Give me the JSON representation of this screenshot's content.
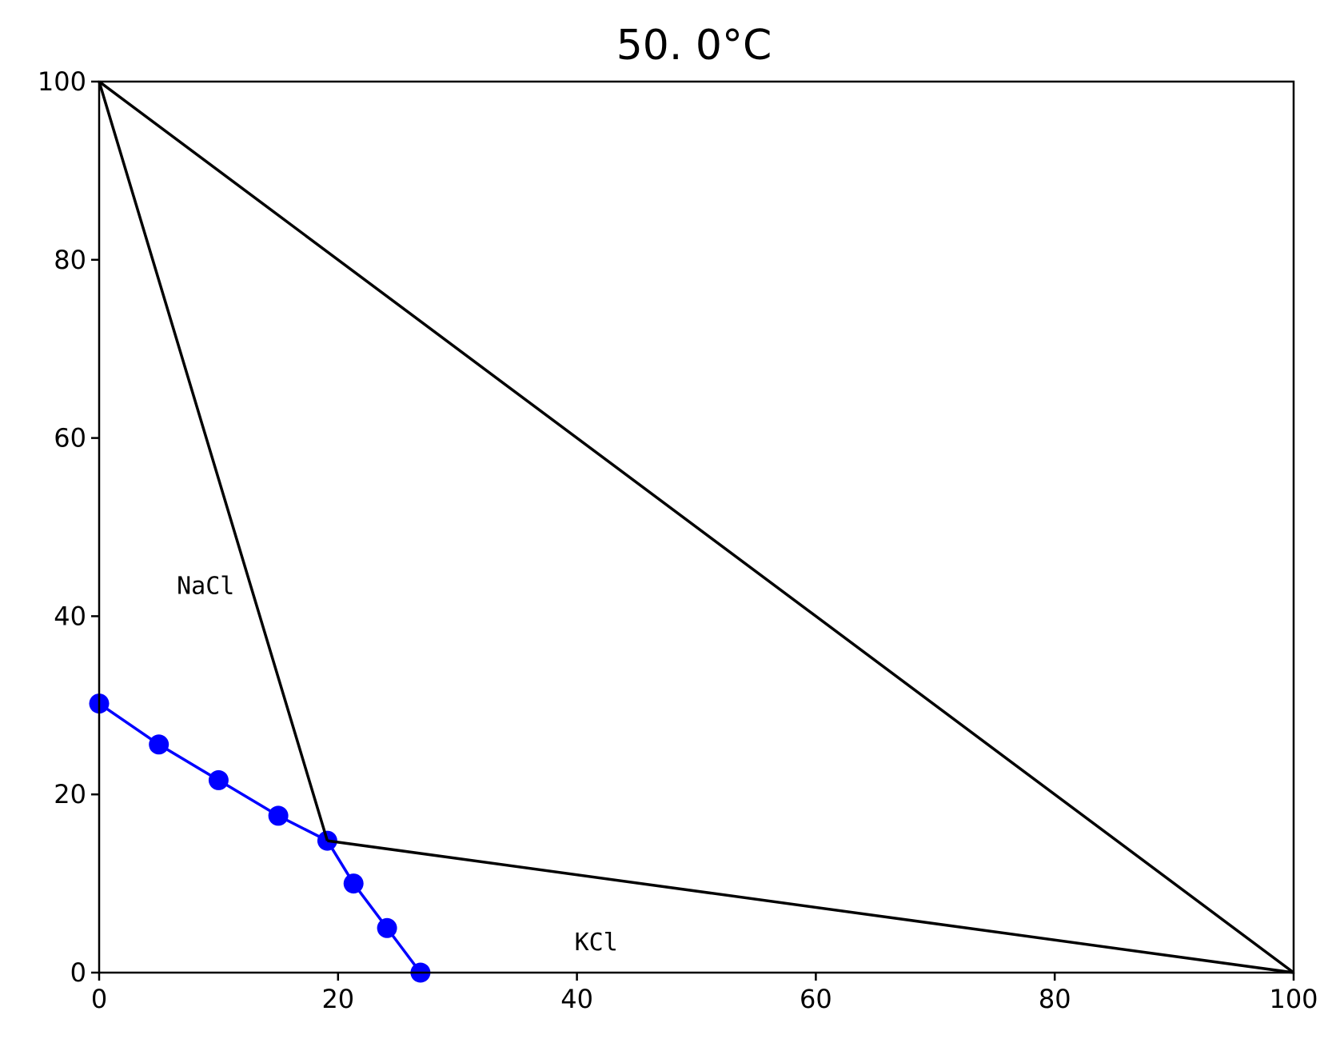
{
  "chart_data": {
    "type": "line",
    "title": "50. 0°C",
    "xlabel": "",
    "ylabel": "",
    "xlim": [
      0,
      100
    ],
    "ylim": [
      0,
      100
    ],
    "grid": false,
    "xticks": [
      0,
      20,
      40,
      60,
      80,
      100
    ],
    "yticks": [
      0,
      20,
      40,
      60,
      80,
      100
    ],
    "series": [
      {
        "color": "#0000ff",
        "marker": "circle",
        "x": [
          0,
          5,
          10,
          15,
          19.1,
          21.3,
          24.1,
          26.9
        ],
        "y": [
          30.2,
          25.6,
          21.6,
          17.6,
          14.8,
          10,
          5,
          0
        ]
      },
      {
        "color": "#000000",
        "marker": "none",
        "x": [
          0,
          19.1
        ],
        "y": [
          100,
          14.8
        ]
      },
      {
        "color": "#000000",
        "marker": "none",
        "x": [
          19.1,
          100
        ],
        "y": [
          14.8,
          0
        ]
      },
      {
        "color": "#000000",
        "marker": "none",
        "x": [
          0,
          100
        ],
        "y": [
          100,
          0
        ]
      }
    ],
    "annotations": [
      {
        "text": "NaCl",
        "x": 6.5,
        "y": 42.5
      },
      {
        "text": "KCl",
        "x": 39.8,
        "y": 2.5
      }
    ]
  }
}
